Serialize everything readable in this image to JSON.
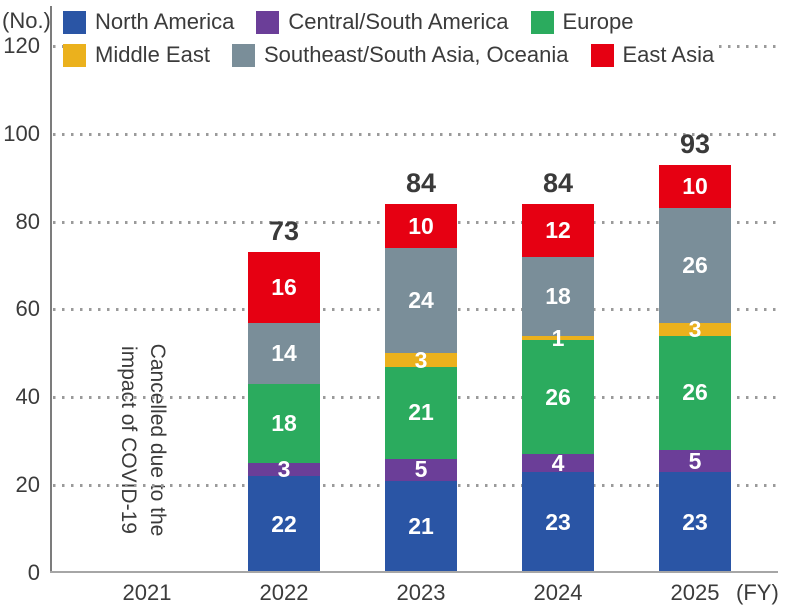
{
  "y_axis": {
    "unit_label": "(No.)",
    "ticks": [
      0,
      20,
      40,
      60,
      80,
      100,
      120
    ],
    "max": 120
  },
  "x_axis": {
    "unit_label": "(FY)",
    "categories": [
      "2021",
      "2022",
      "2023",
      "2024",
      "2025"
    ]
  },
  "annotation": {
    "line1": "Cancelled due to the",
    "line2": "impact of COVID-19"
  },
  "legend_rows": [
    [
      0,
      1,
      2
    ],
    [
      3,
      4,
      5
    ]
  ],
  "chart_data": {
    "type": "bar",
    "stacked": true,
    "title": "",
    "xlabel": "(FY)",
    "ylabel": "(No.)",
    "ylim": [
      0,
      120
    ],
    "grid": "dotted horizontal",
    "legend_position": "top",
    "categories": [
      "2021",
      "2022",
      "2023",
      "2024",
      "2025"
    ],
    "series": [
      {
        "name": "North America",
        "color": "#2A55A5",
        "values": [
          null,
          22,
          21,
          23,
          23
        ]
      },
      {
        "name": "Central/South America",
        "color": "#6B3E98",
        "values": [
          null,
          3,
          5,
          4,
          5
        ]
      },
      {
        "name": "Europe",
        "color": "#2BAB5E",
        "values": [
          null,
          18,
          21,
          26,
          26
        ]
      },
      {
        "name": "Middle East",
        "color": "#EBB11D",
        "values": [
          null,
          null,
          3,
          1,
          3
        ]
      },
      {
        "name": "Southeast/South Asia, Oceania",
        "color": "#7A8E99",
        "values": [
          null,
          14,
          24,
          18,
          26
        ]
      },
      {
        "name": "East Asia",
        "color": "#E60012",
        "values": [
          null,
          16,
          10,
          12,
          10
        ]
      }
    ],
    "totals": [
      null,
      73,
      84,
      84,
      93
    ],
    "annotations": [
      {
        "category": "2021",
        "text": "Cancelled due to the impact of COVID-19",
        "rotation_deg": 90
      }
    ]
  }
}
